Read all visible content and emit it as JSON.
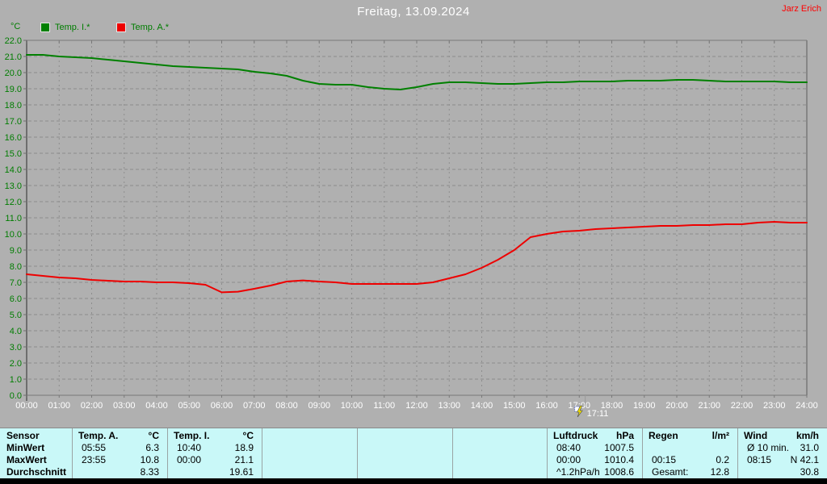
{
  "header": {
    "title": "Freitag, 13.09.2024",
    "author": "Jarz Erich"
  },
  "marker": {
    "time": "17:11",
    "hours": 17.183
  },
  "colors": {
    "background": "#b0b0b0",
    "grid": "#8d8d8d",
    "axis": "#787878",
    "title_text": "#ffffff",
    "axis_label_text": "#007d00",
    "x_label_text": "#ffffff",
    "author_text": "#ff0000",
    "table_background": "#c9f8f8",
    "footer_strip": "#000000",
    "temp_i_line": "#008000",
    "temp_a_line": "#ee0000"
  },
  "chart_data": {
    "type": "line",
    "title": "Freitag, 13.09.2024",
    "xlabel": "",
    "ylabel": "°C",
    "ylim": [
      0,
      22
    ],
    "ytick_step": 1,
    "ytick_labels": [
      "0.0",
      "1.0",
      "2.0",
      "3.0",
      "4.0",
      "5.0",
      "6.0",
      "7.0",
      "8.0",
      "9.0",
      "10.0",
      "11.0",
      "12.0",
      "13.0",
      "14.0",
      "15.0",
      "16.0",
      "17.0",
      "18.0",
      "19.0",
      "20.0",
      "21.0",
      "22.0"
    ],
    "xlim_hours": [
      0,
      24
    ],
    "xtick_labels": [
      "00:00",
      "01:00",
      "02:00",
      "03:00",
      "04:00",
      "05:00",
      "06:00",
      "07:00",
      "08:00",
      "09:00",
      "10:00",
      "11:00",
      "12:00",
      "13:00",
      "14:00",
      "15:00",
      "16:00",
      "17:00",
      "18:00",
      "19:00",
      "20:00",
      "21:00",
      "22:00",
      "23:00",
      "24:00"
    ],
    "grid": "dashed",
    "legend_position": "top-left",
    "x_start_hour": 0,
    "x_step_hours": 0.5,
    "series": [
      {
        "name": "Temp. I.*",
        "color": "#008000",
        "values": [
          21.1,
          21.1,
          21.0,
          20.95,
          20.9,
          20.8,
          20.7,
          20.6,
          20.5,
          20.4,
          20.35,
          20.3,
          20.25,
          20.2,
          20.05,
          19.95,
          19.8,
          19.5,
          19.3,
          19.25,
          19.25,
          19.1,
          19.0,
          18.95,
          19.1,
          19.3,
          19.4,
          19.4,
          19.35,
          19.3,
          19.3,
          19.35,
          19.4,
          19.4,
          19.45,
          19.45,
          19.45,
          19.5,
          19.5,
          19.5,
          19.55,
          19.55,
          19.5,
          19.45,
          19.45,
          19.45,
          19.45,
          19.4,
          19.4
        ]
      },
      {
        "name": "Temp. A.*",
        "color": "#ee0000",
        "values": [
          7.5,
          7.4,
          7.3,
          7.25,
          7.15,
          7.1,
          7.05,
          7.05,
          7.0,
          7.0,
          6.95,
          6.85,
          6.38,
          6.42,
          6.6,
          6.8,
          7.05,
          7.12,
          7.05,
          7.0,
          6.9,
          6.9,
          6.9,
          6.9,
          6.9,
          7.0,
          7.25,
          7.5,
          7.9,
          8.4,
          9.0,
          9.8,
          10.0,
          10.15,
          10.2,
          10.3,
          10.35,
          10.4,
          10.45,
          10.5,
          10.5,
          10.55,
          10.55,
          10.6,
          10.6,
          10.7,
          10.75,
          10.7,
          10.7
        ]
      }
    ]
  },
  "table": {
    "row_labels_column": {
      "labels": [
        "Sensor",
        "MinWert",
        "MaxWert",
        "Durchschnitt"
      ]
    },
    "columns": [
      {
        "name": "temp-a-column",
        "header": [
          "Temp. A.",
          "°C"
        ],
        "rows": [
          [
            "05:55",
            "6.3"
          ],
          [
            "23:55",
            "10.8"
          ],
          [
            "",
            "8.33"
          ]
        ]
      },
      {
        "name": "temp-i-column",
        "header": [
          "Temp. I.",
          "°C"
        ],
        "rows": [
          [
            "10:40",
            "18.9"
          ],
          [
            "00:00",
            "21.1"
          ],
          [
            "",
            "19.61"
          ]
        ]
      },
      {
        "name": "empty-column-1",
        "header": null,
        "rows": []
      },
      {
        "name": "empty-column-2",
        "header": null,
        "rows": []
      },
      {
        "name": "empty-column-3",
        "header": null,
        "rows": []
      },
      {
        "name": "luftdruck-column",
        "header": [
          "Luftdruck",
          "hPa"
        ],
        "rows": [
          [
            "08:40",
            "1007.5"
          ],
          [
            "00:00",
            "1010.4"
          ],
          [
            "^1.2hPa/h",
            "1008.6"
          ]
        ]
      },
      {
        "name": "regen-column",
        "header": [
          "Regen",
          "l/m²"
        ],
        "rows": [
          [
            "",
            ""
          ],
          [
            "00:15",
            "0.2"
          ],
          [
            "Gesamt:",
            "12.8"
          ]
        ]
      },
      {
        "name": "wind-column",
        "header": [
          "Wind",
          "km/h"
        ],
        "rows": [
          [
            "Ø 10 min.",
            "31.0"
          ],
          [
            "08:15",
            "N 42.1"
          ],
          [
            "",
            "30.8"
          ]
        ]
      }
    ]
  }
}
